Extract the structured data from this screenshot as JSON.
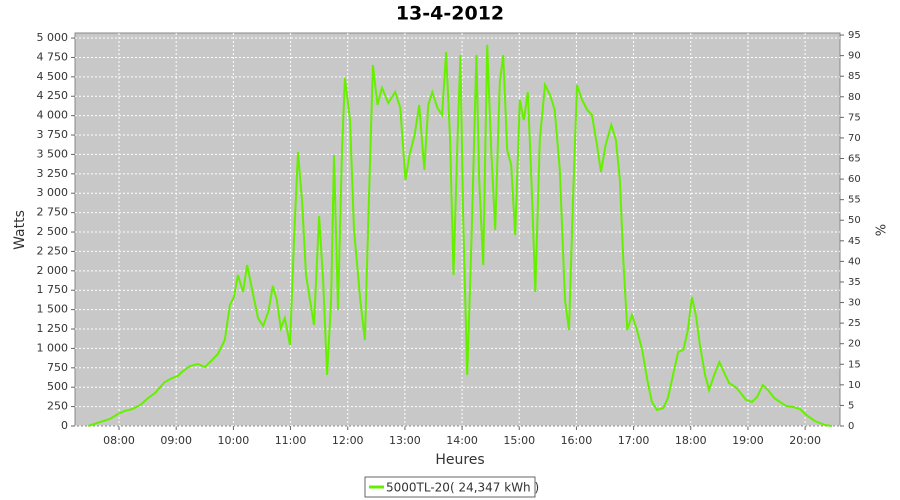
{
  "chart_data": {
    "type": "line",
    "title": "13-4-2012",
    "x_label": "Heures",
    "y_label": "Watts",
    "y2_label": "%",
    "x": [
      7.46,
      7.67,
      7.84,
      7.98,
      8.1,
      8.23,
      8.37,
      8.51,
      8.63,
      8.8,
      8.93,
      9.03,
      9.1,
      9.24,
      9.38,
      9.5,
      9.63,
      9.73,
      9.85,
      9.94,
      10.01,
      10.08,
      10.17,
      10.24,
      10.33,
      10.43,
      10.52,
      10.61,
      10.69,
      10.76,
      10.83,
      10.9,
      10.99,
      11.06,
      11.13,
      11.2,
      11.27,
      11.34,
      11.41,
      11.5,
      11.57,
      11.64,
      11.71,
      11.76,
      11.83,
      11.9,
      11.95,
      12.04,
      12.11,
      12.22,
      12.3,
      12.37,
      12.44,
      12.52,
      12.6,
      12.71,
      12.83,
      12.92,
      13.01,
      13.08,
      13.17,
      13.25,
      13.34,
      13.41,
      13.48,
      13.57,
      13.65,
      13.72,
      13.79,
      13.85,
      13.92,
      13.97,
      14.02,
      14.09,
      14.16,
      14.25,
      14.3,
      14.37,
      14.44,
      14.51,
      14.58,
      14.66,
      14.72,
      14.79,
      14.86,
      14.93,
      15.01,
      15.08,
      15.15,
      15.22,
      15.28,
      15.36,
      15.45,
      15.54,
      15.62,
      15.71,
      15.8,
      15.87,
      15.94,
      16.01,
      16.1,
      16.19,
      16.27,
      16.36,
      16.43,
      16.51,
      16.61,
      16.69,
      16.76,
      16.82,
      16.89,
      16.97,
      17.06,
      17.15,
      17.24,
      17.32,
      17.41,
      17.52,
      17.6,
      17.69,
      17.78,
      17.87,
      17.95,
      18.02,
      18.09,
      18.16,
      18.25,
      18.32,
      18.41,
      18.5,
      18.58,
      18.67,
      18.78,
      18.86,
      18.97,
      19.07,
      19.16,
      19.26,
      19.35,
      19.46,
      19.56,
      19.67,
      19.79,
      19.91,
      20.02,
      20.17,
      20.35,
      20.47
    ],
    "series": [
      {
        "name": "5000TL-20( 24,347 kWh )",
        "color": "#66f000",
        "values": [
          0,
          52,
          90,
          155,
          193,
          219,
          271,
          361,
          425,
          567,
          619,
          644,
          696,
          773,
          799,
          760,
          851,
          928,
          1108,
          1560,
          1663,
          1946,
          1727,
          2075,
          1753,
          1392,
          1289,
          1470,
          1805,
          1624,
          1263,
          1392,
          1044,
          2397,
          3532,
          2913,
          1946,
          1624,
          1302,
          2707,
          1882,
          657,
          1624,
          3493,
          1495,
          3558,
          4486,
          3944,
          2526,
          1624,
          1108,
          2913,
          4653,
          4138,
          4357,
          4163,
          4305,
          4099,
          3171,
          3493,
          3751,
          4138,
          3300,
          4138,
          4305,
          4099,
          4009,
          4821,
          3687,
          1946,
          3687,
          4782,
          2655,
          657,
          2268,
          4782,
          3171,
          2075,
          4911,
          3558,
          2526,
          4434,
          4782,
          3558,
          3364,
          2462,
          4202,
          3944,
          4305,
          3042,
          1727,
          3687,
          4396,
          4266,
          4073,
          3300,
          1624,
          1237,
          2913,
          4396,
          4202,
          4073,
          4009,
          3622,
          3274,
          3622,
          3880,
          3687,
          3171,
          2140,
          1237,
          1431,
          1237,
          980,
          593,
          309,
          206,
          232,
          361,
          657,
          954,
          980,
          1237,
          1663,
          1431,
          1044,
          657,
          464,
          657,
          825,
          696,
          554,
          503,
          438,
          335,
          309,
          374,
          528,
          464,
          361,
          309,
          258,
          245,
          219,
          142,
          64,
          13,
          0
        ]
      }
    ],
    "xlim": [
      7.23,
      20.61
    ],
    "xticks": [
      {
        "value": 8,
        "label": "08:00"
      },
      {
        "value": 9,
        "label": "09:00"
      },
      {
        "value": 10,
        "label": "10:00"
      },
      {
        "value": 11,
        "label": "11:00"
      },
      {
        "value": 12,
        "label": "12:00"
      },
      {
        "value": 13,
        "label": "13:00"
      },
      {
        "value": 14,
        "label": "14:00"
      },
      {
        "value": 15,
        "label": "15:00"
      },
      {
        "value": 16,
        "label": "16:00"
      },
      {
        "value": 17,
        "label": "17:00"
      },
      {
        "value": 18,
        "label": "18:00"
      },
      {
        "value": 19,
        "label": "19:00"
      },
      {
        "value": 20,
        "label": "20:00"
      }
    ],
    "ylim": [
      0,
      5065
    ],
    "yticks": [
      0,
      250,
      500,
      750,
      {
        "value": 1000,
        "label": "1 000"
      },
      {
        "value": 1250,
        "label": "1 250"
      },
      {
        "value": 1500,
        "label": "1 500"
      },
      {
        "value": 1750,
        "label": "1 750"
      },
      {
        "value": 2000,
        "label": "2 000"
      },
      {
        "value": 2250,
        "label": "2 250"
      },
      {
        "value": 2500,
        "label": "2 500"
      },
      {
        "value": 2750,
        "label": "2 750"
      },
      {
        "value": 3000,
        "label": "3 000"
      },
      {
        "value": 3250,
        "label": "3 250"
      },
      {
        "value": 3500,
        "label": "3 500"
      },
      {
        "value": 3750,
        "label": "3 750"
      },
      {
        "value": 4000,
        "label": "4 000"
      },
      {
        "value": 4250,
        "label": "4 250"
      },
      {
        "value": 4500,
        "label": "4 500"
      },
      {
        "value": 4750,
        "label": "4 750"
      },
      {
        "value": 5000,
        "label": "5 000"
      }
    ],
    "y2lim": [
      0,
      95.5
    ],
    "y2ticks": [
      0,
      5,
      10,
      15,
      20,
      25,
      30,
      35,
      40,
      45,
      50,
      55,
      60,
      65,
      70,
      75,
      80,
      85,
      90,
      95
    ],
    "grid": true
  }
}
